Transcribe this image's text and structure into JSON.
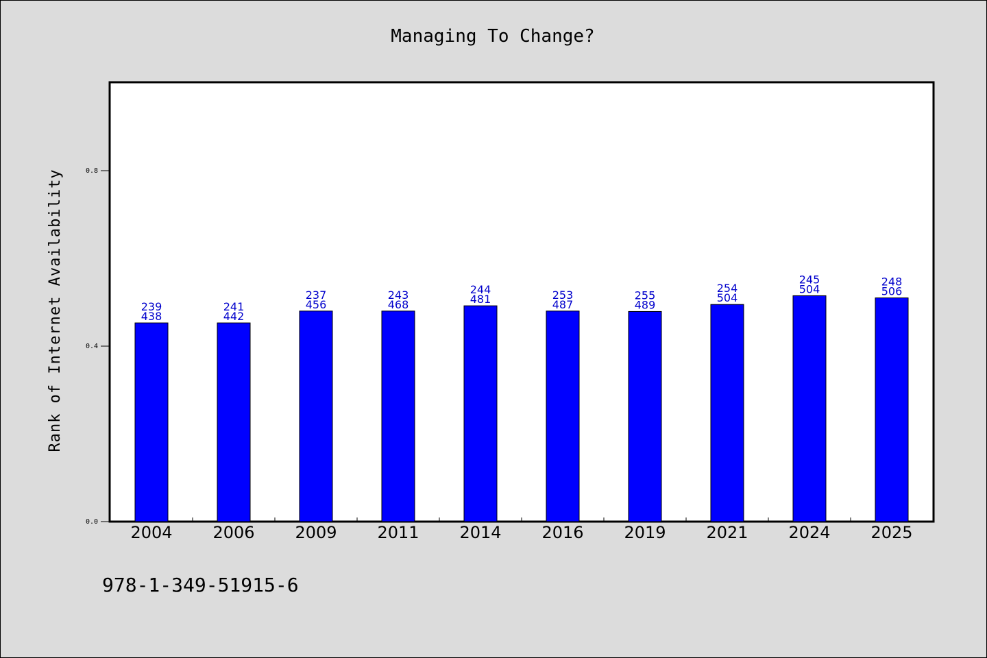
{
  "colors": {
    "background": "#dcdcdc",
    "plot_area": "#ffffff",
    "bar": "#0000ff",
    "data_label": "#0000cc"
  },
  "footer": {
    "isbn": "978-1-349-51915-6"
  },
  "chart_data": {
    "type": "bar",
    "title": "Managing To Change?",
    "xlabel": "",
    "ylabel": "Rank of Internet Availability",
    "categories": [
      "2004",
      "2006",
      "2009",
      "2011",
      "2014",
      "2016",
      "2019",
      "2021",
      "2024",
      "2025"
    ],
    "values": [
      0.453,
      0.453,
      0.48,
      0.48,
      0.492,
      0.48,
      0.479,
      0.495,
      0.515,
      0.51
    ],
    "labels_top": [
      "239",
      "241",
      "237",
      "243",
      "244",
      "253",
      "255",
      "254",
      "245",
      "248"
    ],
    "labels_bottom": [
      "438",
      "442",
      "456",
      "468",
      "481",
      "487",
      "489",
      "504",
      "504",
      "506"
    ],
    "ylim": [
      0,
      1.0
    ],
    "yticks": [
      0.0,
      0.4,
      0.8
    ],
    "ytick_labels": [
      "0.0",
      "0.4",
      "0.8"
    ],
    "grid": false,
    "legend": "none"
  }
}
